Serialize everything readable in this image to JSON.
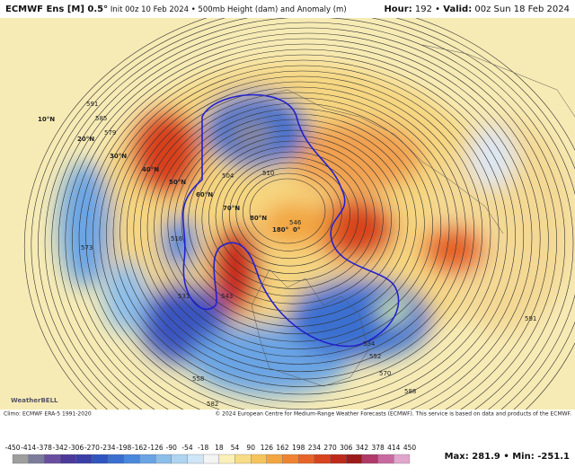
{
  "header": {
    "model": "ECMWF Ens [M] 0.5°",
    "description": " Init 00z 10 Feb 2024 • 500mb Height (dam) and Anomaly (m)",
    "valid": [
      "Hour:",
      " 192 • ",
      "Valid:",
      " 00z Sun 18 Feb 2024"
    ]
  },
  "map": {
    "latitude_labels": [
      "10°N",
      "20°N",
      "30°N",
      "40°N",
      "50°N",
      "60°N",
      "70°N",
      "80°N"
    ],
    "longitude_labels": [
      "180°",
      "0°"
    ],
    "contour_labels": [
      "591",
      "585",
      "579",
      "573",
      "531",
      "516",
      "543",
      "504",
      "510",
      "546",
      "558",
      "534",
      "552",
      "570",
      "588",
      "582",
      "591"
    ]
  },
  "footer": {
    "climo": "Climo: ECMWF ERA-5 1991-2020",
    "copyright": "© 2024 European Centre for Medium-Range Weather Forecasts (ECMWF). This service is based on data and products of the ECMWF.",
    "logo": "WeatherBELL"
  },
  "colorbar": {
    "ticks": [
      "-450",
      "-414",
      "-378",
      "-342",
      "-306",
      "-270",
      "-234",
      "-198",
      "-162",
      "-126",
      "-90",
      "-54",
      "-18",
      "18",
      "54",
      "90",
      "126",
      "162",
      "198",
      "234",
      "270",
      "306",
      "342",
      "378",
      "414",
      "450"
    ],
    "colors": [
      "#9e9e9e",
      "#7b7b9a",
      "#6a4fa0",
      "#4b3a9a",
      "#3a3fa8",
      "#2f55c0",
      "#3a6fd0",
      "#4a88dc",
      "#6aa4e4",
      "#8cbeea",
      "#aed4f0",
      "#cfe6f6",
      "#f4f4f4",
      "#faf0b8",
      "#f7dc86",
      "#f5c45c",
      "#f2a540",
      "#ee8432",
      "#e66428",
      "#d8441e",
      "#be2a1a",
      "#9c1a1a",
      "#b03a6a",
      "#c86aa0",
      "#e0a6cc"
    ]
  },
  "stats": [
    "Max:",
    " 281.9 • ",
    "Min:",
    " -251.1"
  ]
}
